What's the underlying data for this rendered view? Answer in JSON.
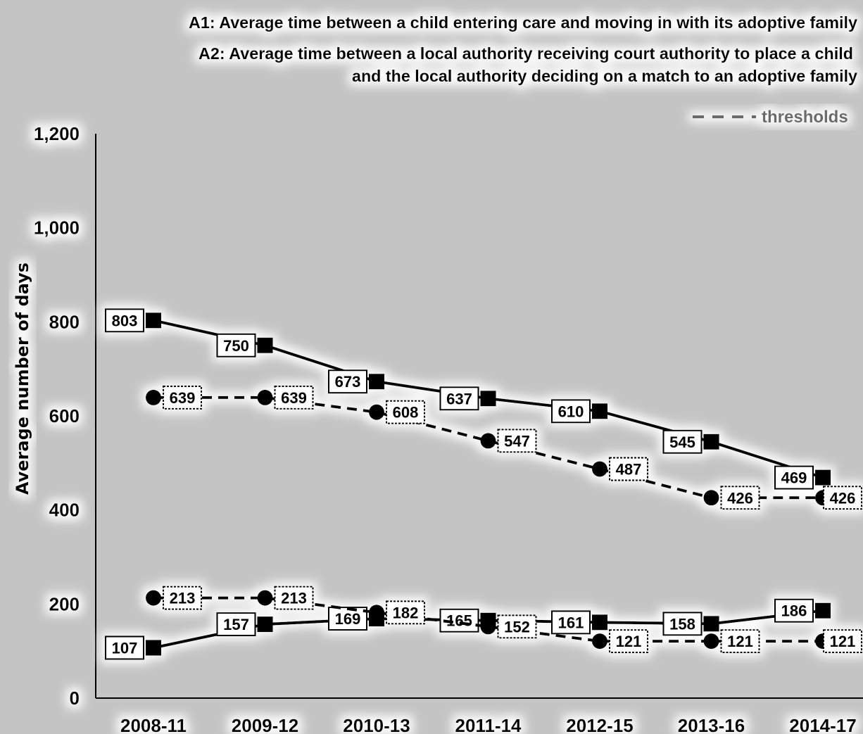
{
  "chart_data": {
    "type": "line",
    "title_lines": [
      "A1: Average time between a child entering care and moving in with its adoptive family",
      "A2: Average time between a local authority receiving court authority to place a child",
      "and the local authority deciding on a match to an adoptive family"
    ],
    "legend": {
      "thresholds_label": "thresholds",
      "placement": "top-right"
    },
    "ylabel": "Average number of days",
    "xlabel": "",
    "ylim": [
      0,
      1200
    ],
    "yticks": [
      0,
      200,
      400,
      600,
      800,
      1000,
      1200
    ],
    "ytick_labels": [
      "0",
      "200",
      "400",
      "600",
      "800",
      "1,000",
      "1,200"
    ],
    "categories": [
      "2008-11",
      "2009-12",
      "2010-13",
      "2011-14",
      "2012-15",
      "2013-16",
      "2014-17"
    ],
    "series": [
      {
        "marker": "square",
        "line": "solid",
        "values": [
          803,
          750,
          673,
          637,
          610,
          545,
          469
        ]
      },
      {
        "marker": "circle",
        "line": "dashed",
        "threshold": true,
        "values": [
          639,
          639,
          608,
          547,
          487,
          426,
          426
        ]
      },
      {
        "marker": "square",
        "line": "solid",
        "values": [
          107,
          157,
          169,
          165,
          161,
          158,
          186
        ]
      },
      {
        "marker": "circle",
        "line": "dashed",
        "threshold": true,
        "values": [
          213,
          213,
          182,
          152,
          121,
          121,
          121
        ]
      }
    ],
    "colors": {
      "background": "#c4c4c4",
      "line": "#000000",
      "marker": "#000000",
      "legend_text": "#6a6a6a"
    },
    "grid": false
  }
}
